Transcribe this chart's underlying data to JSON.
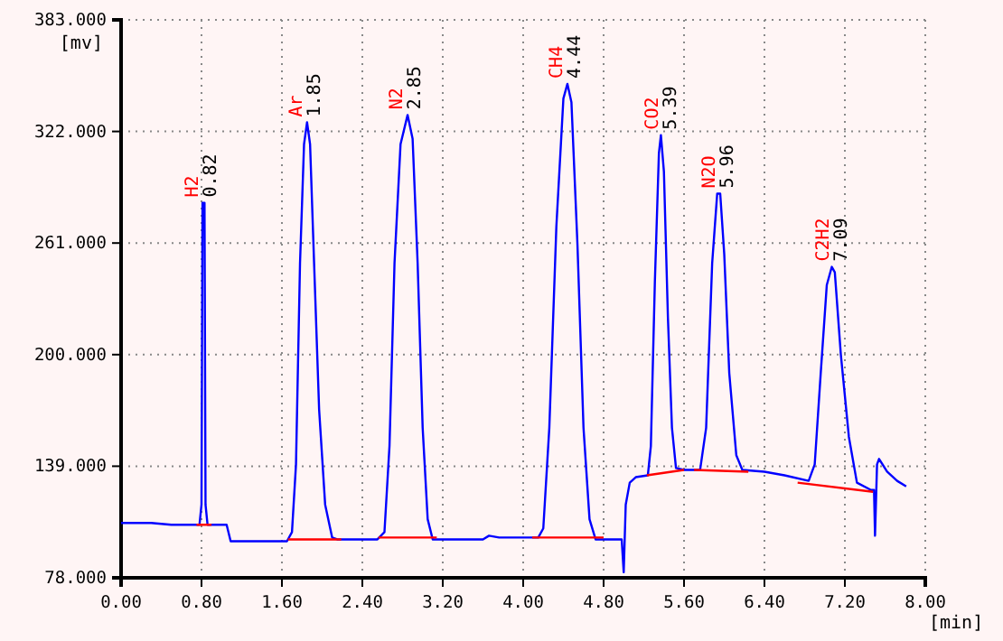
{
  "chart_data": {
    "type": "line",
    "xlabel": "[min]",
    "ylabel": "[mv]",
    "xlim": [
      0,
      8
    ],
    "ylim": [
      78,
      383
    ],
    "xticks": [
      {
        "value": 0,
        "label": "0.00"
      },
      {
        "value": 0.8,
        "label": "0.80"
      },
      {
        "value": 1.6,
        "label": "1.60"
      },
      {
        "value": 2.4,
        "label": "2.40"
      },
      {
        "value": 3.2,
        "label": "3.20"
      },
      {
        "value": 4,
        "label": "4.00"
      },
      {
        "value": 4.8,
        "label": "4.80"
      },
      {
        "value": 5.6,
        "label": "5.60"
      },
      {
        "value": 6.4,
        "label": "6.40"
      },
      {
        "value": 7.2,
        "label": "7.20"
      },
      {
        "value": 8,
        "label": "8.00"
      }
    ],
    "yticks": [
      {
        "value": 78,
        "label": "78.000"
      },
      {
        "value": 139,
        "label": "139.000"
      },
      {
        "value": 200,
        "label": "200.000"
      },
      {
        "value": 261,
        "label": "261.000"
      },
      {
        "value": 322,
        "label": "322.000"
      },
      {
        "value": 383,
        "label": "383.000"
      }
    ],
    "grid": true,
    "marker": "none",
    "line_style": "solid",
    "series": [
      {
        "color": "#0000ff",
        "x": [
          0,
          0.3,
          0.5,
          0.78,
          0.8,
          0.81,
          0.83,
          0.84,
          0.86,
          1.05,
          1.09,
          1.65,
          1.7,
          1.74,
          1.78,
          1.82,
          1.85,
          1.88,
          1.92,
          1.97,
          2.03,
          2.1,
          2.15,
          2.55,
          2.62,
          2.67,
          2.72,
          2.78,
          2.85,
          2.9,
          2.95,
          3,
          3.05,
          3.1,
          3.6,
          3.66,
          3.76,
          4.15,
          4.2,
          4.26,
          4.33,
          4.4,
          4.44,
          4.48,
          4.54,
          4.6,
          4.66,
          4.72,
          4.98,
          5,
          5.02,
          5.06,
          5.12,
          5.24,
          5.27,
          5.31,
          5.35,
          5.37,
          5.4,
          5.44,
          5.48,
          5.52,
          5.6,
          5.76,
          5.82,
          5.88,
          5.93,
          5.96,
          6,
          6.05,
          6.12,
          6.18,
          6.4,
          6.6,
          6.84,
          6.9,
          6.96,
          7.02,
          7.07,
          7.1,
          7.16,
          7.24,
          7.32,
          7.46,
          7.49,
          7.5,
          7.52,
          7.54,
          7.62,
          7.72,
          7.81
        ],
        "values": [
          108,
          108,
          107,
          107,
          118,
          283,
          283,
          118,
          107,
          107,
          98,
          98,
          103,
          140,
          250,
          315,
          327,
          315,
          250,
          170,
          118,
          100,
          99,
          99,
          103,
          150,
          250,
          315,
          331,
          318,
          250,
          160,
          110,
          99,
          99,
          101,
          100,
          100,
          105,
          160,
          270,
          340,
          348,
          338,
          260,
          160,
          110,
          99,
          99,
          81,
          118,
          130,
          133,
          134,
          150,
          240,
          310,
          320,
          300,
          220,
          160,
          138,
          137,
          137,
          160,
          250,
          288,
          288,
          255,
          190,
          145,
          137,
          136,
          134,
          131,
          140,
          190,
          238,
          248,
          245,
          200,
          155,
          130,
          126,
          126,
          101,
          140,
          143,
          136,
          131,
          128
        ]
      },
      {
        "color": "#ff0000",
        "x": [
          0.75,
          0.9,
          0.95,
          1.66,
          2.19,
          2.3,
          2.56,
          3.14,
          3.5,
          4.09,
          4.8,
          5,
          5.23,
          5.6,
          5.65,
          5.7,
          6.24,
          6.5,
          6.73,
          7.48
        ],
        "values": [
          107,
          107,
          null,
          99,
          99,
          null,
          100,
          100,
          null,
          100,
          100,
          null,
          134,
          137,
          null,
          137,
          136,
          null,
          130,
          125
        ]
      }
    ],
    "annotations": [
      {
        "text": "H2",
        "x": 0.82,
        "y": 283
      },
      {
        "text": "0.82",
        "x": 0.82,
        "y": 283
      },
      {
        "text": "Ar",
        "x": 1.85,
        "y": 327
      },
      {
        "text": "1.85",
        "x": 1.85,
        "y": 327
      },
      {
        "text": "N2",
        "x": 2.85,
        "y": 331
      },
      {
        "text": "2.85",
        "x": 2.85,
        "y": 331
      },
      {
        "text": "CH4",
        "x": 4.44,
        "y": 348
      },
      {
        "text": "4.44",
        "x": 4.44,
        "y": 348
      },
      {
        "text": "CO2",
        "x": 5.39,
        "y": 320
      },
      {
        "text": "5.39",
        "x": 5.39,
        "y": 320
      },
      {
        "text": "N2O",
        "x": 5.96,
        "y": 288
      },
      {
        "text": "5.96",
        "x": 5.96,
        "y": 288
      },
      {
        "text": "C2H2",
        "x": 7.09,
        "y": 248
      },
      {
        "text": "7.09",
        "x": 7.09,
        "y": 248
      }
    ]
  }
}
